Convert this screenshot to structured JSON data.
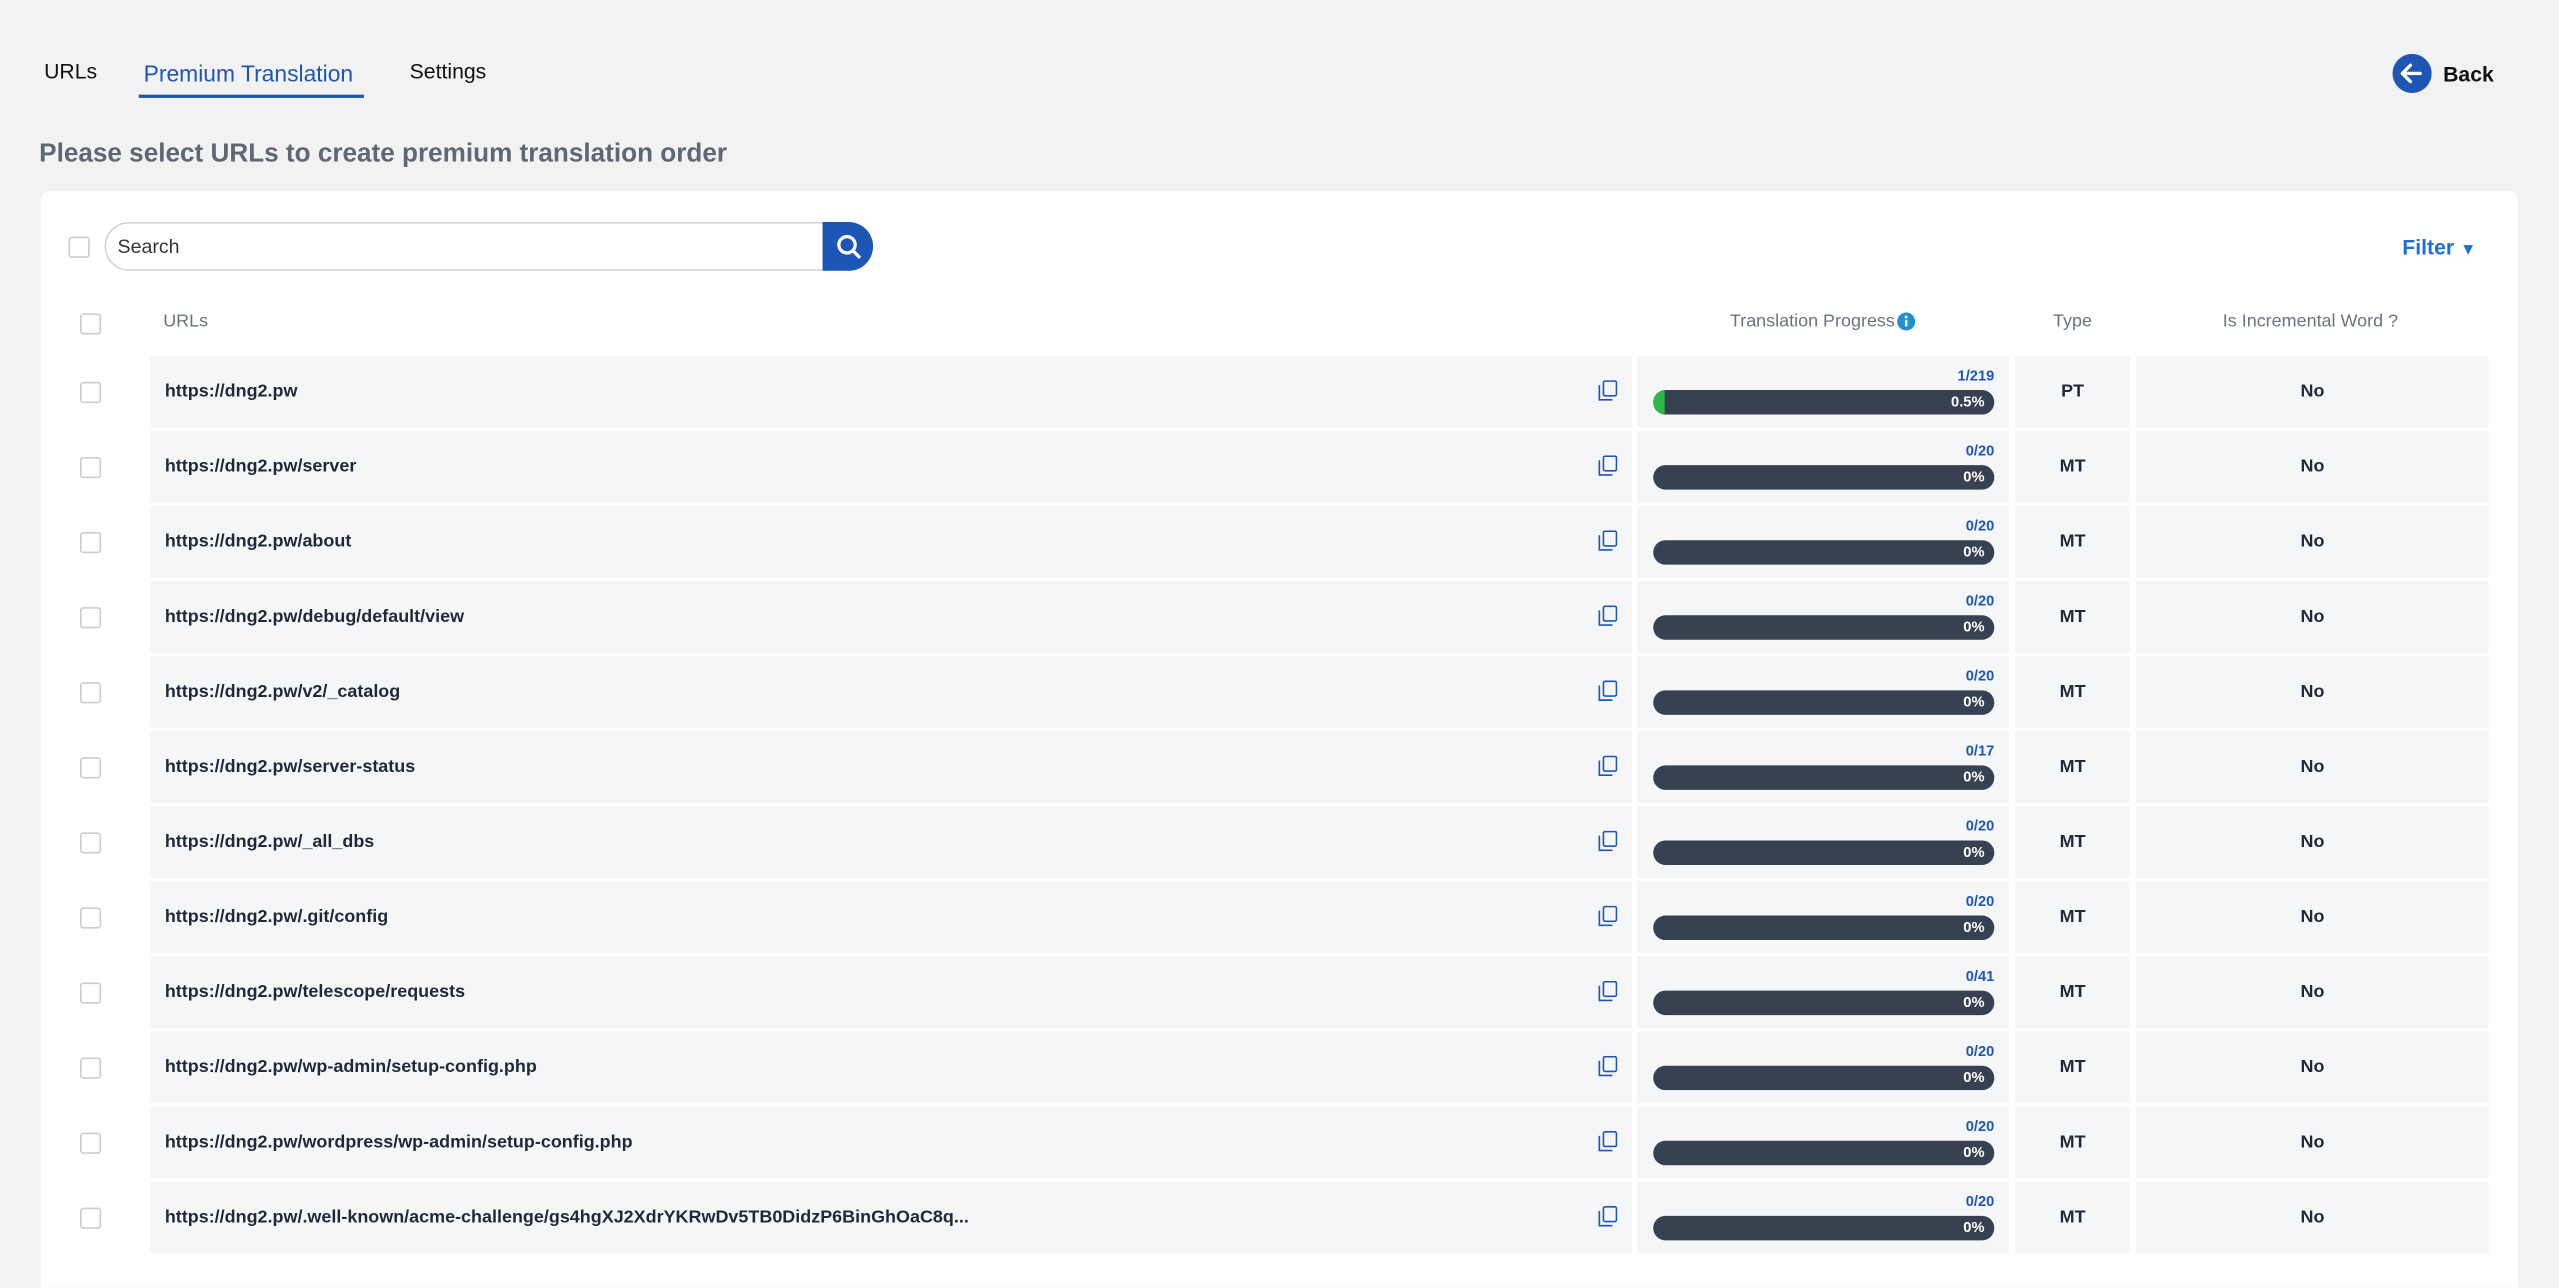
{
  "tabs": [
    "URLs",
    "Premium Translation",
    "Settings"
  ],
  "back": "Back",
  "heading": "Please select URLs to create premium translation order",
  "search_placeholder": "Search",
  "filter": "Filter",
  "columns": {
    "urls": "URLs",
    "progress": "Translation Progress",
    "type": "Type",
    "incremental": "Is Incremental Word ?"
  },
  "rows": [
    {
      "url": "https://dng2.pw",
      "count": "1/219",
      "percent": 0.5,
      "percent_label": "0.5%",
      "type": "PT",
      "incremental": "No"
    },
    {
      "url": "https://dng2.pw/server",
      "count": "0/20",
      "percent": 0,
      "percent_label": "0%",
      "type": "MT",
      "incremental": "No"
    },
    {
      "url": "https://dng2.pw/about",
      "count": "0/20",
      "percent": 0,
      "percent_label": "0%",
      "type": "MT",
      "incremental": "No"
    },
    {
      "url": "https://dng2.pw/debug/default/view",
      "count": "0/20",
      "percent": 0,
      "percent_label": "0%",
      "type": "MT",
      "incremental": "No"
    },
    {
      "url": "https://dng2.pw/v2/_catalog",
      "count": "0/20",
      "percent": 0,
      "percent_label": "0%",
      "type": "MT",
      "incremental": "No"
    },
    {
      "url": "https://dng2.pw/server-status",
      "count": "0/17",
      "percent": 0,
      "percent_label": "0%",
      "type": "MT",
      "incremental": "No"
    },
    {
      "url": "https://dng2.pw/_all_dbs",
      "count": "0/20",
      "percent": 0,
      "percent_label": "0%",
      "type": "MT",
      "incremental": "No"
    },
    {
      "url": "https://dng2.pw/.git/config",
      "count": "0/20",
      "percent": 0,
      "percent_label": "0%",
      "type": "MT",
      "incremental": "No"
    },
    {
      "url": "https://dng2.pw/telescope/requests",
      "count": "0/41",
      "percent": 0,
      "percent_label": "0%",
      "type": "MT",
      "incremental": "No"
    },
    {
      "url": "https://dng2.pw/wp-admin/setup-config.php",
      "count": "0/20",
      "percent": 0,
      "percent_label": "0%",
      "type": "MT",
      "incremental": "No"
    },
    {
      "url": "https://dng2.pw/wordpress/wp-admin/setup-config.php",
      "count": "0/20",
      "percent": 0,
      "percent_label": "0%",
      "type": "MT",
      "incremental": "No"
    },
    {
      "url": "https://dng2.pw/.well-known/acme-challenge/gs4hgXJ2XdrYKRwDv5TB0DidzP6BinGhOaC8q...",
      "count": "0/20",
      "percent": 0,
      "percent_label": "0%",
      "type": "MT",
      "incremental": "No"
    }
  ]
}
